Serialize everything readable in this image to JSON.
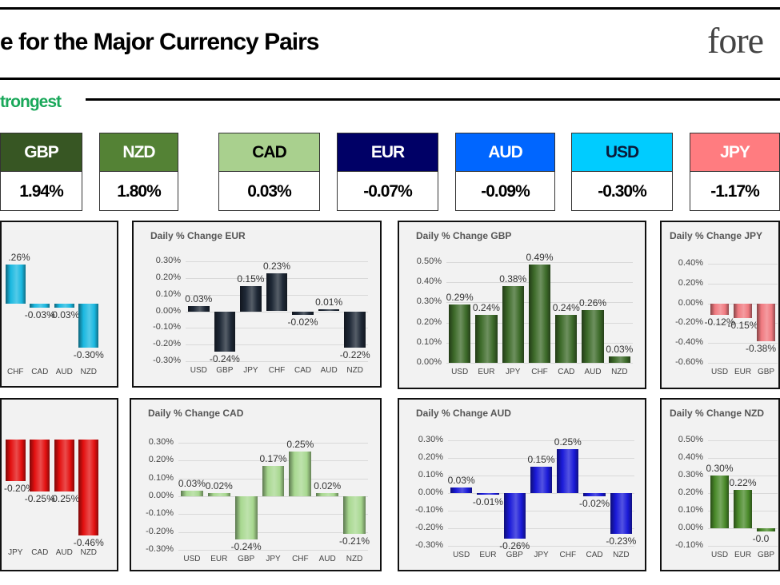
{
  "header": {
    "title": "e for the Major Currency Pairs",
    "logo_text": "fore",
    "strongest_label": "trongest"
  },
  "ranking": [
    {
      "currency": "GBP",
      "change": "1.94%",
      "color": "#375623",
      "text_color": "#ffffff"
    },
    {
      "currency": "NZD",
      "change": "1.80%",
      "color": "#548235",
      "text_color": "#ffffff"
    },
    {
      "currency": "CAD",
      "change": "0.03%",
      "color": "#a9d08e",
      "text_color": "#000000"
    },
    {
      "currency": "EUR",
      "change": "-0.07%",
      "color": "#000066",
      "text_color": "#ffffff"
    },
    {
      "currency": "AUD",
      "change": "-0.09%",
      "color": "#0066ff",
      "text_color": "#ffffff"
    },
    {
      "currency": "USD",
      "change": "-0.30%",
      "color": "#00ccff",
      "text_color": "#0a1a3a"
    },
    {
      "currency": "JPY",
      "change": "-1.17%",
      "color": "#ff7c80",
      "text_color": "#ffffff"
    }
  ],
  "chart_data": [
    {
      "type": "bar",
      "title": "",
      "color": "#1ab8e0",
      "ylim": [
        -0.4,
        0.3
      ],
      "ticks": [],
      "categories": [
        "CHF",
        "CAD",
        "AUD",
        "NZD"
      ],
      "values": [
        0.26,
        -0.03,
        -0.03,
        -0.3
      ],
      "labels": [
        ".26%",
        "-0.03%",
        "-0.03%",
        "-0.30%"
      ]
    },
    {
      "type": "bar",
      "title": "Daily % Change EUR",
      "color": "#1e2836",
      "ylim": [
        -0.3,
        0.3
      ],
      "ticks": [
        "0.30%",
        "0.20%",
        "0.10%",
        "0.00%",
        "-0.10%",
        "-0.20%",
        "-0.30%"
      ],
      "categories": [
        "USD",
        "GBP",
        "JPY",
        "CHF",
        "CAD",
        "AUD",
        "NZD"
      ],
      "values": [
        0.03,
        -0.24,
        0.15,
        0.23,
        -0.02,
        0.01,
        -0.22
      ],
      "labels": [
        "0.03%",
        "-0.24%",
        "0.15%",
        "0.23%",
        "-0.02%",
        "0.01%",
        "-0.22%"
      ]
    },
    {
      "type": "bar",
      "title": "Daily % Change GBP",
      "color": "#3d6b2a",
      "ylim": [
        0,
        0.5
      ],
      "ticks": [
        "0.50%",
        "0.40%",
        "0.30%",
        "0.20%",
        "0.10%",
        "0.00%"
      ],
      "categories": [
        "USD",
        "EUR",
        "JPY",
        "CHF",
        "CAD",
        "AUD",
        "NZD"
      ],
      "values": [
        0.29,
        0.24,
        0.38,
        0.49,
        0.24,
        0.26,
        0.03
      ],
      "labels": [
        "0.29%",
        "0.24%",
        "0.38%",
        "0.49%",
        "0.24%",
        "0.26%",
        "0.03%"
      ]
    },
    {
      "type": "bar",
      "title": "Daily % Change JPY",
      "color": "#f07a80",
      "ylim": [
        -0.6,
        0.4
      ],
      "ticks": [
        "0.40%",
        "0.20%",
        "0.00%",
        "-0.20%",
        "-0.40%",
        "-0.60%"
      ],
      "categories": [
        "USD",
        "EUR",
        "GBP"
      ],
      "values": [
        -0.12,
        -0.15,
        -0.38
      ],
      "labels": [
        "-0.12%",
        "-0.15%",
        "-0.38%"
      ]
    },
    {
      "type": "bar",
      "title": "",
      "color": "#e31010",
      "ylim": [
        -0.5,
        0
      ],
      "ticks": [],
      "categories": [
        "JPY",
        "CAD",
        "AUD",
        "NZD"
      ],
      "values": [
        -0.2,
        -0.25,
        -0.25,
        -0.46
      ],
      "labels": [
        "-0.20%",
        "-0.25%",
        "-0.25%",
        "-0.46%"
      ]
    },
    {
      "type": "bar",
      "title": "Daily % Change CAD",
      "color": "#a8d890",
      "ylim": [
        -0.3,
        0.3
      ],
      "ticks": [
        "0.30%",
        "0.20%",
        "0.10%",
        "0.00%",
        "-0.10%",
        "-0.20%",
        "-0.30%"
      ],
      "categories": [
        "USD",
        "EUR",
        "GBP",
        "JPY",
        "CHF",
        "AUD",
        "NZD"
      ],
      "values": [
        0.03,
        0.02,
        -0.24,
        0.17,
        0.25,
        0.02,
        -0.21
      ],
      "labels": [
        "0.03%",
        "0.02%",
        "-0.24%",
        "0.17%",
        "0.25%",
        "0.02%",
        "-0.21%"
      ]
    },
    {
      "type": "bar",
      "title": "Daily % Change AUD",
      "color": "#1a1ad8",
      "ylim": [
        -0.3,
        0.3
      ],
      "ticks": [
        "0.30%",
        "0.20%",
        "0.10%",
        "0.00%",
        "-0.10%",
        "-0.20%",
        "-0.30%"
      ],
      "categories": [
        "USD",
        "EUR",
        "GBP",
        "JPY",
        "CHF",
        "CAD",
        "NZD"
      ],
      "values": [
        0.03,
        -0.01,
        -0.26,
        0.15,
        0.25,
        -0.02,
        -0.23
      ],
      "labels": [
        "0.03%",
        "-0.01%",
        "-0.26%",
        "0.15%",
        "0.25%",
        "-0.02%",
        "-0.23%"
      ]
    },
    {
      "type": "bar",
      "title": "Daily % Change NZD",
      "color": "#4a8a2a",
      "ylim": [
        -0.1,
        0.5
      ],
      "ticks": [
        "0.50%",
        "0.40%",
        "0.30%",
        "0.20%",
        "0.10%",
        "0.00%",
        "-0.10%"
      ],
      "categories": [
        "USD",
        "EUR",
        "GBP"
      ],
      "values": [
        0.3,
        0.22,
        -0.02
      ],
      "labels": [
        "0.30%",
        "0.22%",
        "-0.0"
      ]
    }
  ]
}
